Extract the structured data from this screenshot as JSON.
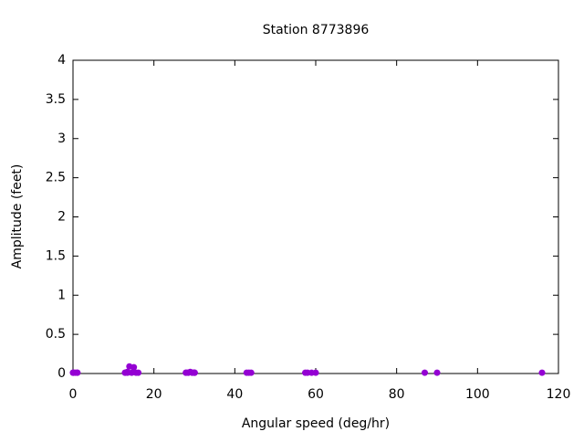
{
  "chart_data": {
    "type": "scatter",
    "title": "Station 8773896",
    "x_label": "Angular speed (deg/hr)",
    "y_label": "Amplitude (feet)",
    "color": "#9400d3",
    "x": [
      0,
      0.04,
      0.08,
      0.54,
      1.02,
      1.1,
      12.85,
      12.93,
      13.4,
      13.47,
      13.94,
      14.49,
      14.96,
      15.04,
      15.59,
      16.14,
      27.9,
      27.97,
      28.44,
      28.51,
      28.98,
      29.46,
      29.53,
      29.96,
      30,
      30.04,
      30.08,
      42.93,
      43.48,
      44.03,
      57.42,
      57.97,
      58.98,
      60,
      86.95,
      90,
      115.94
    ],
    "values": [
      0.01,
      0.01,
      0.01,
      0.01,
      0.01,
      0.01,
      0.01,
      0.01,
      0.02,
      0.01,
      0.09,
      0.01,
      0.02,
      0.08,
      0.01,
      0.01,
      0.01,
      0.01,
      0.01,
      0.01,
      0.02,
      0.01,
      0.01,
      0.01,
      0.01,
      0.01,
      0.01,
      0.01,
      0.01,
      0.01,
      0.01,
      0.01,
      0.01,
      0.01,
      0.01,
      0.01,
      0.01
    ],
    "xlim": [
      0,
      120
    ],
    "xticks": [
      0,
      20,
      40,
      60,
      80,
      100,
      120
    ],
    "ylim": [
      0,
      4
    ],
    "yticks": [
      0,
      0.5,
      1,
      1.5,
      2,
      2.5,
      3,
      3.5,
      4
    ]
  }
}
